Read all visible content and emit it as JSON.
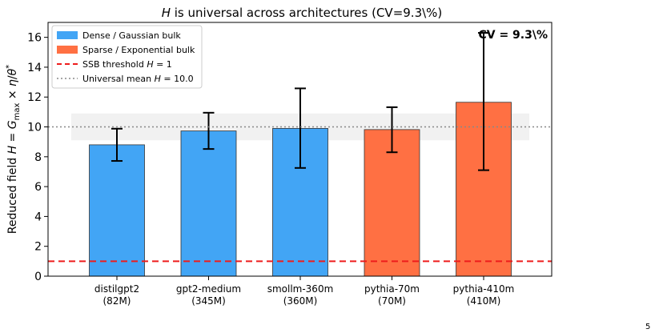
{
  "chart_data": {
    "type": "bar",
    "title_parts": [
      {
        "text": "H",
        "style": "italic"
      },
      {
        "text": " is universal across architectures (CV=9.3\\%)",
        "style": "normal"
      }
    ],
    "ylabel": "Reduced field H = G_max × η/θ*",
    "ylim": [
      0,
      17
    ],
    "yticks": [
      0,
      2,
      4,
      6,
      8,
      10,
      12,
      14,
      16
    ],
    "categories": [
      {
        "name": "distilgpt2",
        "size": "(82M)"
      },
      {
        "name": "gpt2-medium",
        "size": "(345M)"
      },
      {
        "name": "smollm-360m",
        "size": "(360M)"
      },
      {
        "name": "pythia-70m",
        "size": "(70M)"
      },
      {
        "name": "pythia-410m",
        "size": "(410M)"
      }
    ],
    "values": [
      8.8,
      9.73,
      9.9,
      9.82,
      11.65
    ],
    "error_low": [
      7.72,
      8.52,
      7.25,
      8.3,
      7.1
    ],
    "error_high": [
      9.88,
      10.95,
      12.58,
      11.32,
      16.3
    ],
    "bar_groups": [
      "dense",
      "dense",
      "dense",
      "sparse",
      "sparse"
    ],
    "colors": {
      "dense": "#42a5f5",
      "sparse": "#ff7043",
      "threshold": "#ee1c1c",
      "mean": "#888888",
      "band": "#d6d6d6"
    },
    "threshold_value": 1,
    "mean_value": 10.0,
    "mean_band": [
      9.1,
      10.9
    ],
    "annotation": "CV = 9.3\\%",
    "legend": {
      "placement": "upper-left",
      "entries": [
        {
          "key": "dense",
          "kind": "patch",
          "label": "Dense / Gaussian bulk"
        },
        {
          "key": "sparse",
          "kind": "patch",
          "label": "Sparse / Exponential bulk"
        },
        {
          "key": "threshold",
          "kind": "dashed",
          "label": "SSB threshold H = 1"
        },
        {
          "key": "mean",
          "kind": "dotted",
          "label": "Universal mean H = 10.0"
        }
      ]
    },
    "corner_mark": "5"
  }
}
